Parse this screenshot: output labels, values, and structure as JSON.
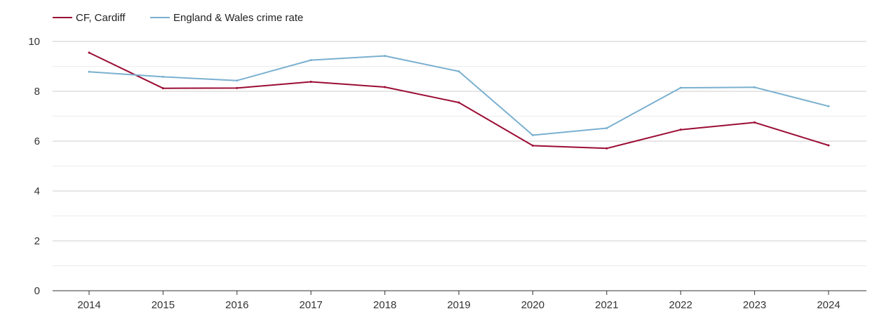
{
  "chart_data": {
    "type": "line",
    "title": "",
    "xlabel": "",
    "ylabel": "",
    "x": [
      "2014",
      "2015",
      "2016",
      "2017",
      "2018",
      "2019",
      "2020",
      "2021",
      "2022",
      "2023",
      "2024"
    ],
    "ylim": [
      0,
      10
    ],
    "yticks": [
      0,
      2,
      4,
      6,
      8,
      10
    ],
    "grid": true,
    "legend_position": "top-left",
    "series": [
      {
        "name": "CF, Cardiff",
        "color": "#9b0d35",
        "values": [
          9.55,
          8.12,
          8.13,
          8.38,
          8.17,
          7.55,
          5.82,
          5.71,
          6.46,
          6.75,
          5.83
        ]
      },
      {
        "name": "England & Wales crime rate",
        "color": "#7ab0d0",
        "values": [
          8.78,
          8.58,
          8.43,
          9.25,
          9.42,
          8.8,
          6.24,
          6.52,
          8.14,
          8.16,
          7.4
        ]
      }
    ]
  }
}
